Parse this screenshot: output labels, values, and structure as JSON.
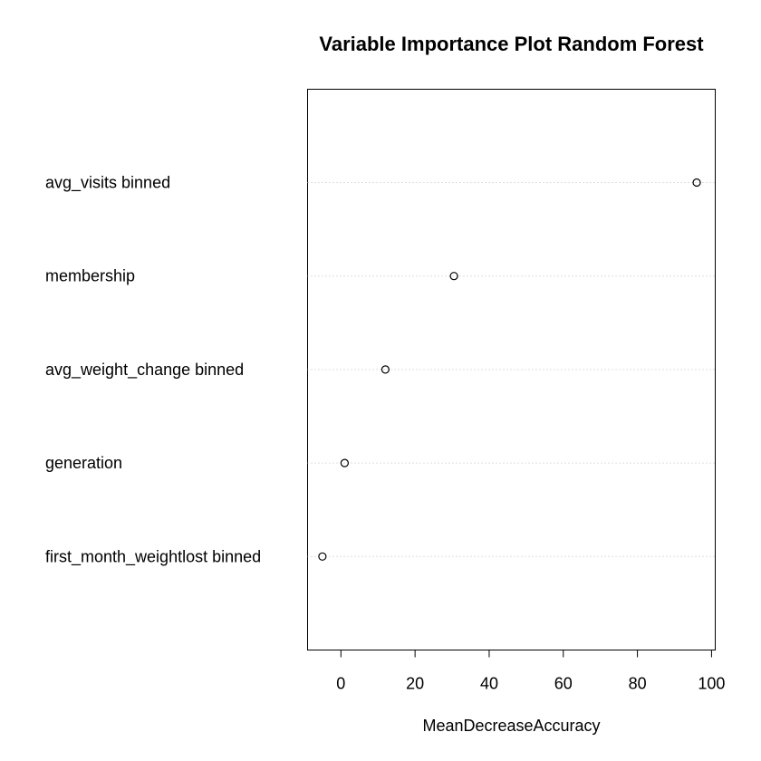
{
  "chart_data": {
    "type": "scatter",
    "title": "Variable Importance Plot Random Forest",
    "xlabel": "MeanDecreaseAccuracy",
    "ylabel": "",
    "xlim": [
      -9,
      101
    ],
    "x_ticks": [
      0,
      20,
      40,
      60,
      80,
      100
    ],
    "grid": "dotted horizontal guide lines",
    "categories": [
      "avg_visits binned",
      "membership",
      "avg_weight_change binned",
      "generation",
      "first_month_weightlost binned"
    ],
    "values": [
      96,
      30.5,
      12,
      1,
      -5
    ],
    "marker": "open circle",
    "colors": {
      "axis": "#000000",
      "grid": "#bebebe",
      "marker": "#000000"
    }
  }
}
